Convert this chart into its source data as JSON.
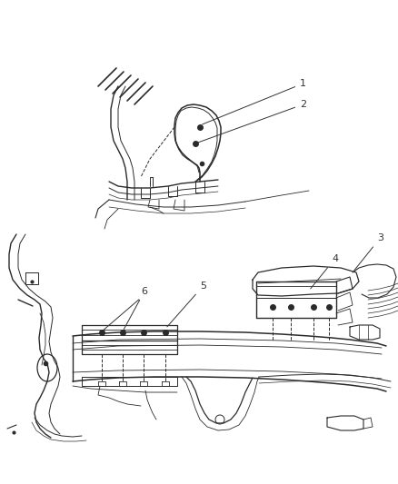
{
  "background_color": "#ffffff",
  "fig_width": 4.38,
  "fig_height": 5.33,
  "dpi": 100,
  "line_color": "#2a2a2a",
  "light_line_color": "#555555",
  "annotation_color": "#333333"
}
